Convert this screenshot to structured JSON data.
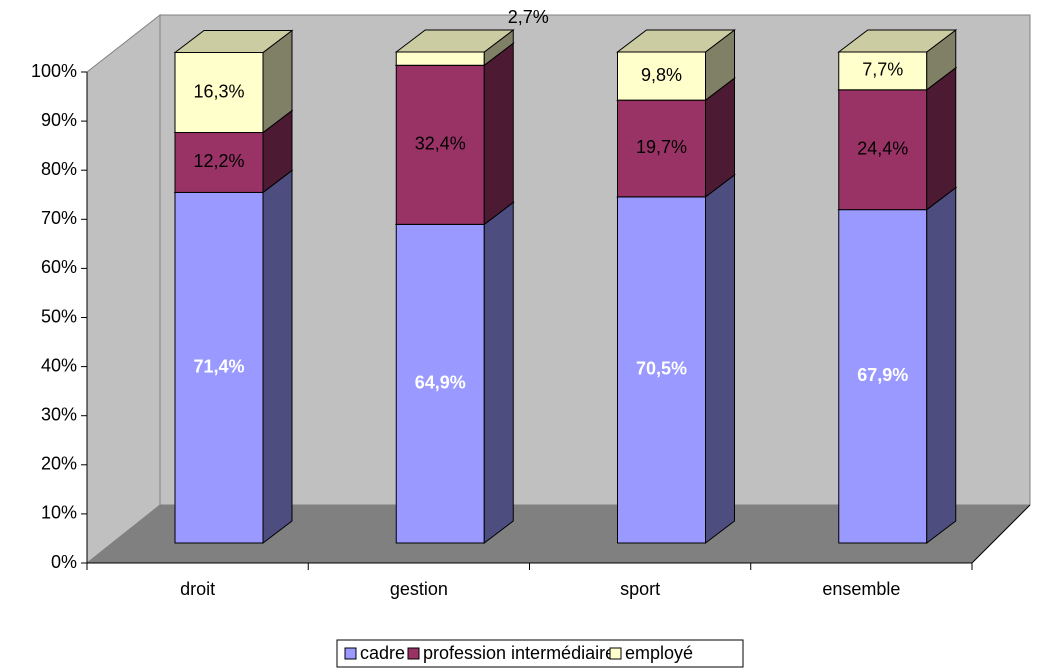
{
  "chart_data": {
    "type": "bar3d_stacked",
    "categories": [
      "droit",
      "gestion",
      "sport",
      "ensemble"
    ],
    "series": [
      {
        "name": "cadre",
        "color": "#9999ff",
        "values": [
          71.4,
          64.9,
          70.5,
          67.9
        ],
        "value_labels": [
          "71,4%",
          "64,9%",
          "70,5%",
          "67,9%"
        ]
      },
      {
        "name": "profession intermédiaire",
        "color": "#993366",
        "values": [
          12.2,
          32.4,
          19.7,
          24.4
        ],
        "value_labels": [
          "12,2%",
          "32,4%",
          "19,7%",
          "24,4%"
        ]
      },
      {
        "name": "employé",
        "color": "#ffffcc",
        "values": [
          16.3,
          2.7,
          9.8,
          7.7
        ],
        "value_labels": [
          "16,3%",
          "2,7%",
          "9,8%",
          "7,7%"
        ]
      }
    ],
    "ylim": [
      0,
      100
    ],
    "yticks": [
      {
        "value": 0,
        "label": "0%"
      },
      {
        "value": 10,
        "label": "10%"
      },
      {
        "value": 20,
        "label": "20%"
      },
      {
        "value": 30,
        "label": "30%"
      },
      {
        "value": 40,
        "label": "40%"
      },
      {
        "value": 50,
        "label": "50%"
      },
      {
        "value": 60,
        "label": "60%"
      },
      {
        "value": 70,
        "label": "70%"
      },
      {
        "value": 80,
        "label": "80%"
      },
      {
        "value": 90,
        "label": "90%"
      },
      {
        "value": 100,
        "label": "100%"
      }
    ],
    "legend": "bottom"
  }
}
